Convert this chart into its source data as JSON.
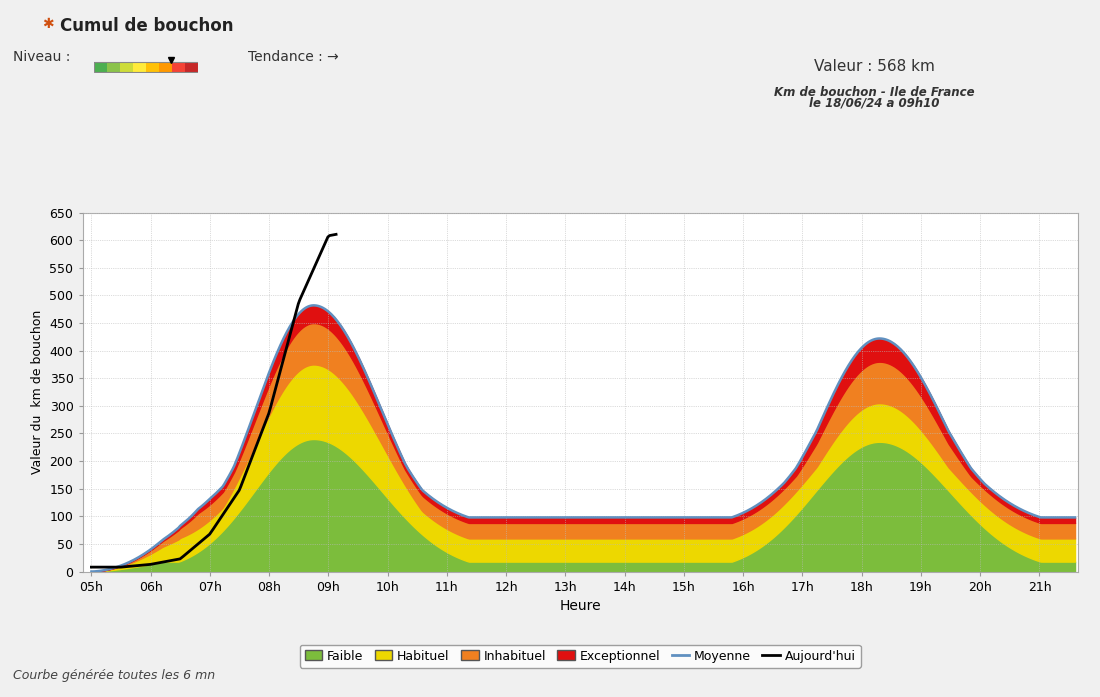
{
  "title_header": "Cumul de bouchon",
  "valeur_text": "Valeur : 568 km",
  "subtitle_line1": "Km de bouchon - Ile de France",
  "subtitle_line2": "le 18/06/24 a 09h10",
  "footer": "Courbe générée toutes les 6 mn",
  "xlabel": "Heure",
  "ylabel": "Valeur du  km de bouchon",
  "niveau_label": "Niveau :",
  "tendance_label": "Tendance : →",
  "xtick_labels": [
    "05h",
    "06h",
    "07h",
    "08h",
    "09h",
    "10h",
    "11h",
    "12h",
    "13h",
    "14h",
    "15h",
    "16h",
    "17h",
    "18h",
    "19h",
    "20h",
    "21h"
  ],
  "xtick_positions": [
    5,
    6,
    7,
    8,
    9,
    10,
    11,
    12,
    13,
    14,
    15,
    16,
    17,
    18,
    19,
    20,
    21
  ],
  "ytick_values": [
    0,
    50,
    100,
    150,
    200,
    250,
    300,
    350,
    400,
    450,
    500,
    550,
    600,
    650
  ],
  "ylim": [
    0,
    650
  ],
  "xlim": [
    4.85,
    21.65
  ],
  "color_faible": "#7cbd3c",
  "color_habituel": "#edd800",
  "color_inhabituel": "#f08020",
  "color_exceptionnel": "#e01010",
  "color_moyenne": "#6090c0",
  "color_aujourdhui": "#000000",
  "bg_color": "#f0f0f0",
  "plot_bg": "#ffffff",
  "grid_color": "#bbbbbb",
  "legend_labels": [
    "Faible",
    "Habituel",
    "Inhabituel",
    "Exceptionnel",
    "Moyenne",
    "Aujourd'hui"
  ]
}
